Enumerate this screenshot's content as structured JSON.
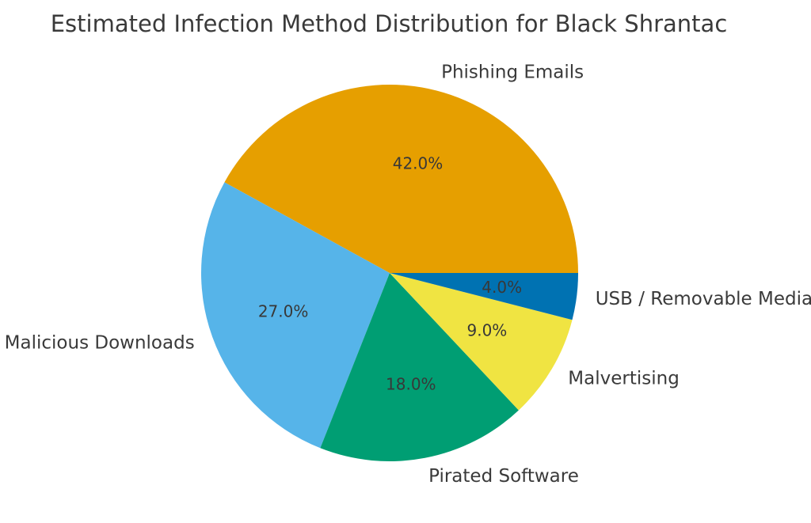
{
  "page": {
    "background": "#ffffff",
    "text_color": "#3a3a3a"
  },
  "chart_data": {
    "type": "pie",
    "title": "Estimated Infection Method Distribution for Black Shrantac",
    "labels": [
      "Phishing Emails",
      "Malicious Downloads",
      "Pirated Software",
      "Malvertising",
      "USB / Removable Media"
    ],
    "values": [
      42.0,
      27.0,
      18.0,
      9.0,
      4.0
    ],
    "pct_labels": [
      "42.0%",
      "27.0%",
      "18.0%",
      "9.0%",
      "4.0%"
    ],
    "colors": [
      "#E69F00",
      "#56B4E9",
      "#009E73",
      "#F0E442",
      "#0072B2"
    ],
    "start_angle": 0,
    "direction": "counterclockwise",
    "label_distance": 1.1,
    "pct_distance": 0.6,
    "legend": "none",
    "background": "#ffffff"
  }
}
